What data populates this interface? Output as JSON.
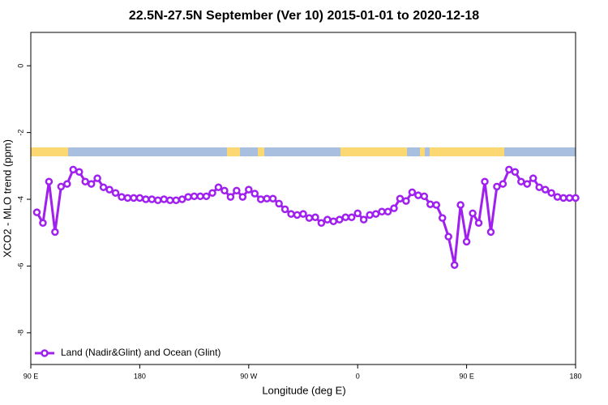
{
  "chart_data": {
    "type": "line",
    "title": "22.5N-27.5N September (Ver 10)   2015-01-01 to 2020-12-18",
    "x_label": "Longitude (deg E)",
    "y_label": "XCO2 - MLO trend (ppm)",
    "xlim": [
      90,
      540
    ],
    "ylim": [
      -8.95,
      1.0
    ],
    "xticks": [
      {
        "value": 90,
        "label": "90 E"
      },
      180,
      {
        "value": 270,
        "label": "90 W"
      },
      {
        "value": 360,
        "label": "0"
      },
      {
        "value": 450,
        "label": "90 E"
      },
      {
        "value": 540,
        "label": "180"
      }
    ],
    "yticks": [
      0,
      -2,
      -4,
      -6,
      -8
    ],
    "legend": "bottom-left",
    "x": [
      95,
      100,
      105,
      110,
      115,
      120,
      125,
      130,
      135,
      140,
      145,
      150,
      155,
      160,
      165,
      170,
      175,
      180,
      185,
      190,
      195,
      200,
      205,
      210,
      215,
      220,
      225,
      230,
      235,
      240,
      245,
      250,
      255,
      260,
      265,
      270,
      275,
      280,
      285,
      290,
      295,
      300,
      305,
      310,
      315,
      320,
      325,
      330,
      335,
      340,
      345,
      350,
      355,
      360,
      365,
      370,
      375,
      380,
      385,
      390,
      395,
      400,
      405,
      410,
      415,
      420,
      425,
      430,
      435,
      440,
      445,
      450,
      455,
      460,
      465,
      470,
      475,
      480,
      485,
      490,
      495,
      500,
      505,
      510,
      515,
      520,
      525,
      530,
      535,
      540
    ],
    "series": [
      {
        "name": "Land (Nadir&Glint) and Ocean (Glint)",
        "color": "#a020f0",
        "values": [
          -4.39,
          -4.71,
          -3.47,
          -4.98,
          -3.62,
          -3.54,
          -3.11,
          -3.18,
          -3.47,
          -3.54,
          -3.37,
          -3.64,
          -3.71,
          -3.81,
          -3.93,
          -3.96,
          -3.96,
          -3.96,
          -4.0,
          -4.0,
          -4.03,
          -4.0,
          -4.03,
          -4.03,
          -4.0,
          -3.93,
          -3.91,
          -3.91,
          -3.91,
          -3.81,
          -3.64,
          -3.74,
          -3.93,
          -3.74,
          -3.93,
          -3.71,
          -3.83,
          -4.0,
          -3.98,
          -3.98,
          -4.13,
          -4.3,
          -4.44,
          -4.47,
          -4.44,
          -4.56,
          -4.54,
          -4.71,
          -4.61,
          -4.66,
          -4.61,
          -4.54,
          -4.54,
          -4.42,
          -4.61,
          -4.47,
          -4.44,
          -4.37,
          -4.37,
          -4.27,
          -3.98,
          -4.05,
          -3.79,
          -3.88,
          -3.91,
          -4.15,
          -4.17,
          -4.56,
          -5.12,
          -5.97,
          -4.17,
          -5.27,
          -4.42,
          -4.71,
          -3.47,
          -4.98,
          -3.62,
          -3.54,
          -3.11,
          -3.18,
          -3.47,
          -3.54,
          -3.37,
          -3.64,
          -3.71,
          -3.81,
          -3.93,
          -3.96,
          -3.96,
          -3.96
        ]
      }
    ]
  }
}
